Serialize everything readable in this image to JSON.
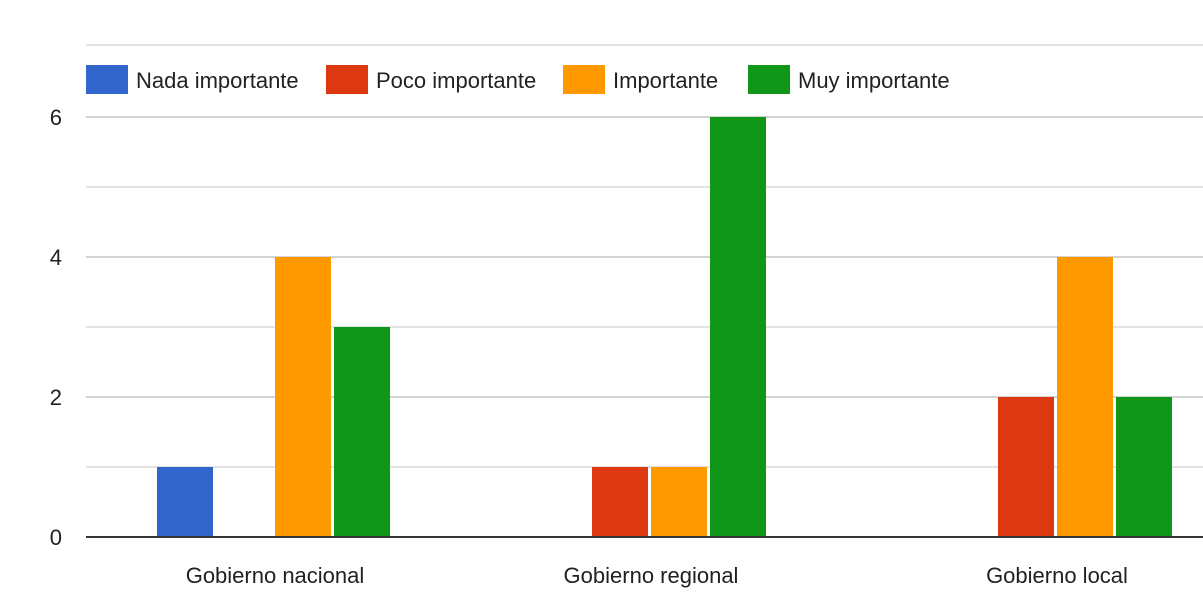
{
  "chart_data": {
    "type": "bar",
    "title": "",
    "xlabel": "",
    "ylabel": "",
    "categories": [
      "Gobierno nacional",
      "Gobierno regional",
      "Gobierno local"
    ],
    "series": [
      {
        "name": "Nada importante",
        "color": "#3366cc",
        "values": [
          1,
          0,
          0
        ]
      },
      {
        "name": "Poco importante",
        "color": "#dc3912",
        "values": [
          0,
          1,
          2
        ]
      },
      {
        "name": "Importante",
        "color": "#ff9900",
        "values": [
          4,
          1,
          4
        ]
      },
      {
        "name": "Muy importante",
        "color": "#109618",
        "values": [
          3,
          6,
          2
        ]
      }
    ],
    "ylim": [
      0,
      6
    ],
    "yticks": [
      "0",
      "2",
      "4",
      "6"
    ],
    "grid": true,
    "legend_position": "top-left"
  }
}
